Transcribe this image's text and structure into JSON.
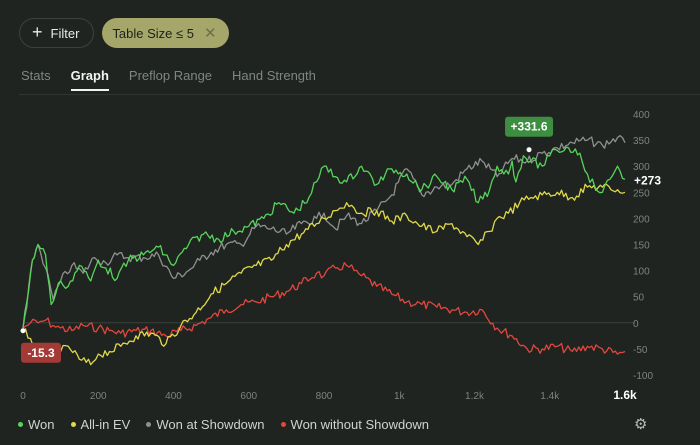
{
  "toolbar": {
    "filter_label": "Filter",
    "active_filter_label": "Table Size ≤ 5"
  },
  "tabs": [
    {
      "label": "Stats",
      "active": false
    },
    {
      "label": "Graph",
      "active": true
    },
    {
      "label": "Preflop Range",
      "active": false
    },
    {
      "label": "Hand Strength",
      "active": false
    }
  ],
  "icons": {
    "plus": "plus-icon",
    "close": "close-icon",
    "settings": "gear-icon"
  },
  "chart_data": {
    "type": "line",
    "xlim": [
      0,
      1600
    ],
    "ylim": [
      -100,
      400
    ],
    "x_ticks": [
      "0",
      "200",
      "400",
      "600",
      "800",
      "1k",
      "1.2k",
      "1.4k",
      "1.6k"
    ],
    "x_tick_values": [
      0,
      200,
      400,
      600,
      800,
      1000,
      1200,
      1400,
      1600
    ],
    "y_ticks": [
      "400",
      "350",
      "300",
      "250",
      "200",
      "150",
      "100",
      "50",
      "0",
      "-50",
      "-100"
    ],
    "y_tick_values": [
      400,
      350,
      300,
      250,
      200,
      150,
      100,
      50,
      0,
      -50,
      -100
    ],
    "grid": false,
    "zero_line": true,
    "legend_position": "bottom-left",
    "series": [
      {
        "name": "Won",
        "color": "#56d45b",
        "x": [
          0,
          10,
          25,
          40,
          60,
          75,
          100,
          120,
          150,
          180,
          200,
          220,
          250,
          280,
          320,
          360,
          400,
          440,
          480,
          520,
          560,
          600,
          640,
          680,
          720,
          760,
          780,
          800,
          830,
          860,
          900,
          940,
          980,
          1020,
          1060,
          1100,
          1140,
          1180,
          1210,
          1240,
          1260,
          1290,
          1300,
          1310,
          1330,
          1350,
          1380,
          1400,
          1420,
          1450,
          1480,
          1500,
          1520,
          1540,
          1560,
          1580,
          1600
        ],
        "y": [
          -10,
          40,
          120,
          150,
          130,
          35,
          80,
          70,
          110,
          80,
          120,
          105,
          85,
          120,
          130,
          145,
          110,
          150,
          170,
          160,
          175,
          185,
          200,
          230,
          210,
          240,
          270,
          300,
          280,
          270,
          300,
          265,
          295,
          285,
          255,
          280,
          255,
          275,
          230,
          255,
          300,
          285,
          310,
          270,
          320,
          310,
          300,
          320,
          330,
          335,
          325,
          285,
          260,
          250,
          275,
          300,
          275
        ]
      },
      {
        "name": "All-in EV",
        "color": "#e0d94a",
        "x": [
          0,
          20,
          40,
          60,
          80,
          100,
          120,
          150,
          180,
          200,
          230,
          260,
          300,
          340,
          380,
          420,
          460,
          500,
          540,
          580,
          620,
          660,
          700,
          740,
          780,
          800,
          830,
          860,
          880,
          900,
          940,
          980,
          1020,
          1060,
          1100,
          1140,
          1180,
          1210,
          1240,
          1260,
          1290,
          1320,
          1350,
          1380,
          1420,
          1460,
          1500,
          1540,
          1580,
          1600
        ],
        "y": [
          -15,
          -30,
          -55,
          -65,
          -40,
          -55,
          -45,
          -70,
          -80,
          -60,
          -55,
          -45,
          -25,
          -20,
          -40,
          -5,
          20,
          55,
          75,
          95,
          110,
          120,
          150,
          170,
          190,
          200,
          215,
          230,
          220,
          210,
          215,
          195,
          205,
          185,
          175,
          190,
          165,
          150,
          175,
          200,
          210,
          230,
          240,
          245,
          250,
          240,
          260,
          260,
          255,
          250
        ]
      },
      {
        "name": "Won at Showdown",
        "color": "#8f918f",
        "x": [
          0,
          10,
          25,
          40,
          60,
          80,
          100,
          130,
          160,
          190,
          220,
          250,
          280,
          320,
          360,
          400,
          440,
          470,
          500,
          540,
          580,
          620,
          660,
          700,
          740,
          780,
          800,
          830,
          860,
          900,
          940,
          980,
          1020,
          1060,
          1100,
          1140,
          1180,
          1220,
          1260,
          1300,
          1340,
          1380,
          1420,
          1460,
          1500,
          1540,
          1580,
          1600
        ],
        "y": [
          -10,
          30,
          120,
          150,
          105,
          45,
          80,
          110,
          95,
          125,
          115,
          130,
          125,
          125,
          130,
          85,
          100,
          120,
          135,
          150,
          150,
          185,
          180,
          170,
          190,
          200,
          210,
          180,
          205,
          190,
          215,
          245,
          295,
          245,
          260,
          265,
          295,
          310,
          280,
          315,
          310,
          325,
          335,
          345,
          350,
          340,
          355,
          345
        ]
      },
      {
        "name": "Won without Showdown",
        "color": "#e2463d",
        "x": [
          0,
          20,
          40,
          60,
          80,
          100,
          130,
          160,
          200,
          230,
          260,
          300,
          340,
          380,
          420,
          460,
          500,
          540,
          580,
          620,
          660,
          700,
          740,
          780,
          800,
          830,
          860,
          880,
          900,
          940,
          980,
          1020,
          1060,
          1100,
          1140,
          1180,
          1220,
          1260,
          1300,
          1340,
          1380,
          1420,
          1460,
          1500,
          1540,
          1580,
          1600
        ],
        "y": [
          -10,
          0,
          0,
          5,
          -5,
          -10,
          -15,
          -5,
          -10,
          -15,
          -20,
          -15,
          -15,
          -25,
          -15,
          -5,
          10,
          25,
          35,
          40,
          50,
          60,
          75,
          95,
          90,
          105,
          110,
          100,
          90,
          70,
          55,
          40,
          35,
          30,
          25,
          20,
          25,
          -10,
          -25,
          -50,
          -50,
          -45,
          -55,
          -45,
          -50,
          -60,
          -55
        ]
      }
    ],
    "annotations": [
      {
        "text": "+331.6",
        "x": 1345,
        "y": 331.6,
        "color": "#3d8e41",
        "placement": "above"
      },
      {
        "text": "-15.3",
        "x": 0,
        "y": -15.3,
        "color": "#a33a36",
        "placement": "below"
      },
      {
        "text": "+273",
        "x": 1600,
        "y": 273,
        "color": "#ffffff",
        "placement": "right"
      }
    ]
  }
}
